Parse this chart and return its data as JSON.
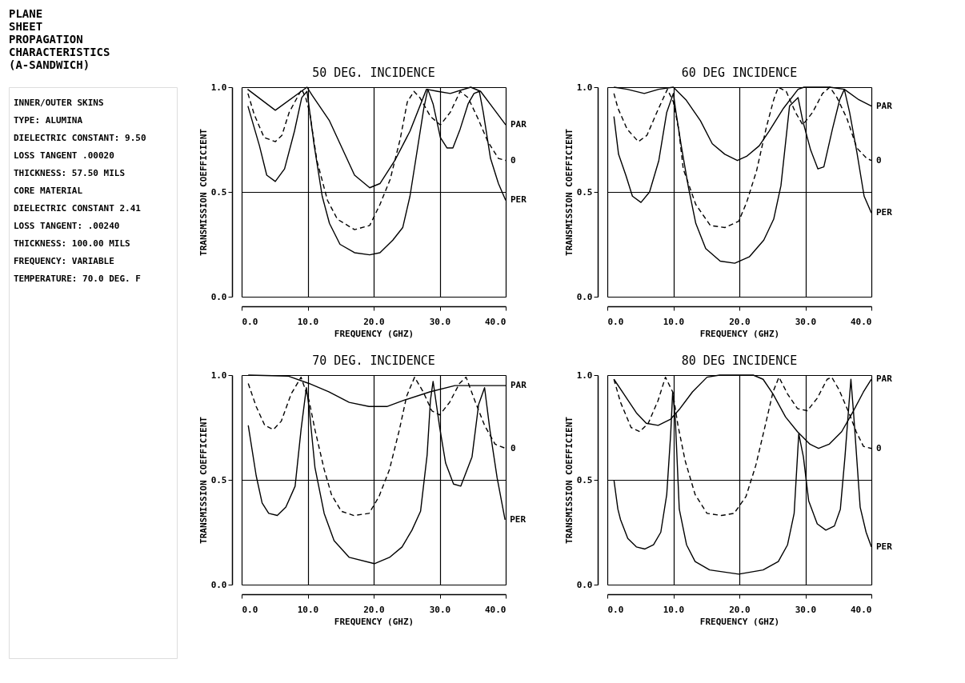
{
  "chart_data": [
    {
      "type": "other",
      "title": "PLANE SHEET PROPAGATION CHARACTERISTICS (A-SANDWICH)",
      "annotations": [
        "INNER/OUTER SKINS",
        "TYPE: ALUMINA",
        "DIELECTRIC CONSTANT: 9.50",
        "LOSS TANGENT .00020",
        "THICKNESS: 57.50 MILS",
        "CORE MATERIAL",
        "DIELECTRIC CONSTANT 2.41",
        "LOSS TANGENT: .00240",
        "THICKNESS: 100.00 MILS",
        "FREQUENCY: VARIABLE",
        "TEMPERATURE: 70.0 DEG. F"
      ]
    },
    {
      "type": "line",
      "title": "50 DEG. INCIDENCE",
      "xlabel": "FREQUENCY (GHZ)",
      "ylabel": "TRANSMISSION COEFFICIENT",
      "xlim": [
        0,
        40
      ],
      "ylim": [
        0,
        1
      ],
      "xticks": [
        {
          "value": 0,
          "label": "0.0"
        },
        {
          "value": 10,
          "label": "10.0"
        },
        {
          "value": 20,
          "label": "20.0"
        },
        {
          "value": 30,
          "label": "30.0"
        },
        {
          "value": 40,
          "label": "40.0"
        }
      ],
      "yticks": [
        {
          "value": 0,
          "label": "0.0"
        },
        {
          "value": 0.5,
          "label": "0.5"
        },
        {
          "value": 1,
          "label": "1.0"
        }
      ],
      "grid": true,
      "series": [
        {
          "name": "PAR",
          "color": "#000000",
          "line_style": "solid",
          "x": [
            0.9,
            5.1,
            9.9,
            10.7,
            13.3,
            15.2,
            17.1,
            19.4,
            20.95,
            23.2,
            25.5,
            28,
            29.7,
            31.6,
            34.7,
            36.2,
            38.1,
            40
          ],
          "values": [
            0.99,
            0.89,
            1.0,
            0.96,
            0.84,
            0.71,
            0.58,
            0.52,
            0.54,
            0.65,
            0.79,
            0.99,
            0.98,
            0.97,
            1.0,
            0.98,
            0.9,
            0.82
          ]
        },
        {
          "name": "0",
          "color": "#000000",
          "line_style": "dashed",
          "x": [
            0.95,
            1.9,
            3.4,
            5.1,
            6.1,
            7.2,
            9.1,
            9.7,
            10.3,
            11.4,
            13,
            14.5,
            17.1,
            19.4,
            20.95,
            22.5,
            24,
            25.1,
            26.1,
            27,
            28.6,
            30.1,
            31.6,
            33.1,
            34.3,
            35.8,
            37.3,
            38.9,
            40
          ],
          "values": [
            0.97,
            0.87,
            0.76,
            0.74,
            0.77,
            0.88,
            0.99,
            0.95,
            0.88,
            0.65,
            0.46,
            0.37,
            0.32,
            0.34,
            0.44,
            0.56,
            0.75,
            0.93,
            0.98,
            0.95,
            0.86,
            0.82,
            0.88,
            0.98,
            0.95,
            0.85,
            0.74,
            0.66,
            0.65
          ]
        },
        {
          "name": "PER",
          "color": "#000000",
          "line_style": "solid",
          "x": [
            0.95,
            2.7,
            3.8,
            5.1,
            6.5,
            8,
            9.1,
            9.9,
            11,
            12.2,
            13.3,
            14.9,
            17.1,
            19.4,
            20.95,
            22.9,
            24.4,
            25.5,
            26.7,
            27.6,
            28.2,
            29,
            30.1,
            31.1,
            32,
            33.1,
            34.3,
            35.2,
            36,
            36.6,
            37.7,
            38.9,
            40
          ],
          "values": [
            0.91,
            0.72,
            0.58,
            0.55,
            0.61,
            0.79,
            0.95,
            0.98,
            0.72,
            0.48,
            0.35,
            0.25,
            0.21,
            0.2,
            0.21,
            0.27,
            0.33,
            0.48,
            0.72,
            0.9,
            0.99,
            0.92,
            0.76,
            0.71,
            0.71,
            0.8,
            0.92,
            0.97,
            0.98,
            0.88,
            0.66,
            0.54,
            0.46
          ]
        }
      ]
    },
    {
      "type": "line",
      "title": "60 DEG INCIDENCE",
      "xlabel": "FREQUENCY (GHZ)",
      "ylabel": "TRANSMISSION COEFFICIENT",
      "xlim": [
        0,
        40
      ],
      "ylim": [
        0,
        1
      ],
      "xticks": [
        {
          "value": 0,
          "label": "0.0"
        },
        {
          "value": 10,
          "label": "10.0"
        },
        {
          "value": 20,
          "label": "20.0"
        },
        {
          "value": 30,
          "label": "30.0"
        },
        {
          "value": 40,
          "label": "40.0"
        }
      ],
      "yticks": [
        {
          "value": 0,
          "label": "0.0"
        },
        {
          "value": 0.5,
          "label": "0.5"
        },
        {
          "value": 1,
          "label": "1.0"
        }
      ],
      "grid": true,
      "series": [
        {
          "name": "PAR",
          "color": "#000000",
          "line_style": "solid",
          "x": [
            1,
            3,
            5.6,
            7.8,
            10,
            11.9,
            14.1,
            15.9,
            17.8,
            19.7,
            21.1,
            23,
            24.5,
            26.7,
            28.9,
            29.8,
            33.7,
            35.9,
            38.1,
            40
          ],
          "values": [
            1.0,
            0.99,
            0.97,
            0.99,
            1.0,
            0.94,
            0.84,
            0.73,
            0.68,
            0.65,
            0.67,
            0.72,
            0.79,
            0.9,
            0.99,
            1.0,
            1.0,
            0.99,
            0.94,
            0.91
          ]
        },
        {
          "name": "0",
          "color": "#000000",
          "line_style": "dashed",
          "x": [
            1,
            1.6,
            3,
            4.7,
            6,
            7.5,
            9.1,
            10,
            10.8,
            11.5,
            13.4,
            15.6,
            17.8,
            19.9,
            21.1,
            22.6,
            24.1,
            25.2,
            25.9,
            27.1,
            28.5,
            29.6,
            31.1,
            32.6,
            33.7,
            34.8,
            36.3,
            37.8,
            39.3,
            40
          ],
          "values": [
            0.97,
            0.9,
            0.8,
            0.74,
            0.77,
            0.88,
            0.99,
            0.93,
            0.8,
            0.61,
            0.44,
            0.34,
            0.33,
            0.36,
            0.45,
            0.6,
            0.81,
            0.94,
            1.0,
            0.98,
            0.88,
            0.82,
            0.88,
            0.97,
            1.0,
            0.95,
            0.85,
            0.71,
            0.66,
            0.65
          ]
        },
        {
          "name": "PER",
          "color": "#000000",
          "line_style": "solid",
          "x": [
            1,
            1.7,
            2.8,
            3.8,
            5.1,
            6.4,
            7.8,
            9,
            10,
            10.4,
            11.2,
            12.3,
            13.4,
            14.9,
            17.1,
            19.3,
            21.5,
            23.7,
            25.2,
            26.3,
            27.6,
            28.9,
            29.6,
            30.8,
            31.9,
            32.8,
            34.1,
            35.2,
            35.9,
            36.7,
            37.8,
            38.9,
            40
          ],
          "values": [
            0.86,
            0.68,
            0.58,
            0.48,
            0.45,
            0.5,
            0.65,
            0.88,
            0.97,
            0.88,
            0.72,
            0.52,
            0.35,
            0.23,
            0.17,
            0.16,
            0.19,
            0.27,
            0.37,
            0.53,
            0.91,
            0.95,
            0.84,
            0.7,
            0.61,
            0.62,
            0.8,
            0.94,
            0.99,
            0.88,
            0.69,
            0.48,
            0.4
          ]
        }
      ]
    },
    {
      "type": "line",
      "title": "70 DEG. INCIDENCE",
      "xlabel": "FREQUENCY (GHZ)",
      "ylabel": "TRANSMISSION COEFFICIENT",
      "xlim": [
        0,
        40
      ],
      "ylim": [
        0,
        1
      ],
      "xticks": [
        {
          "value": 0,
          "label": "0.0"
        },
        {
          "value": 10,
          "label": "10.0"
        },
        {
          "value": 20,
          "label": "20.0"
        },
        {
          "value": 30,
          "label": "30.0"
        },
        {
          "value": 40,
          "label": "40.0"
        }
      ],
      "yticks": [
        {
          "value": 0,
          "label": "0.0"
        },
        {
          "value": 0.5,
          "label": "0.5"
        },
        {
          "value": 1,
          "label": "1.0"
        }
      ],
      "grid": true,
      "series": [
        {
          "name": "PAR",
          "color": "#000000",
          "line_style": "solid",
          "x": [
            1,
            7.1,
            10.2,
            13.2,
            16.3,
            19.3,
            22,
            24.6,
            28.5,
            32.3,
            34.9,
            40
          ],
          "values": [
            1.0,
            0.995,
            0.96,
            0.92,
            0.87,
            0.85,
            0.85,
            0.88,
            0.92,
            0.95,
            0.95,
            0.95
          ]
        },
        {
          "name": "0",
          "color": "#000000",
          "line_style": "dashed",
          "x": [
            1,
            2.2,
            3.5,
            4.8,
            6,
            7.5,
            9,
            10.2,
            11.1,
            12.5,
            13.6,
            15.1,
            17,
            19.3,
            20.8,
            22.4,
            23.9,
            25,
            26.2,
            27.5,
            28.8,
            30,
            31.5,
            33,
            34,
            35.3,
            36.8,
            38.4,
            40
          ],
          "values": [
            0.96,
            0.85,
            0.76,
            0.74,
            0.78,
            0.91,
            0.99,
            0.88,
            0.74,
            0.55,
            0.43,
            0.35,
            0.33,
            0.34,
            0.42,
            0.55,
            0.74,
            0.9,
            0.99,
            0.92,
            0.83,
            0.81,
            0.87,
            0.96,
            0.99,
            0.88,
            0.76,
            0.67,
            0.65
          ]
        },
        {
          "name": "PER",
          "color": "#000000",
          "line_style": "solid",
          "x": [
            1,
            1.6,
            2.2,
            3.1,
            4.1,
            5.4,
            6.7,
            8.1,
            9,
            9.8,
            10.2,
            11.1,
            12.5,
            14,
            16.3,
            20.1,
            22.4,
            24.3,
            25.8,
            27.1,
            28.1,
            28.6,
            29,
            30,
            30.9,
            32.1,
            33.2,
            34.9,
            35.9,
            36.8,
            37.6,
            38.7,
            39.9
          ],
          "values": [
            0.76,
            0.64,
            0.52,
            0.39,
            0.34,
            0.33,
            0.37,
            0.47,
            0.74,
            0.94,
            0.85,
            0.56,
            0.34,
            0.21,
            0.13,
            0.1,
            0.13,
            0.18,
            0.26,
            0.35,
            0.62,
            0.88,
            0.97,
            0.75,
            0.58,
            0.48,
            0.47,
            0.61,
            0.86,
            0.94,
            0.74,
            0.51,
            0.31
          ]
        }
      ]
    },
    {
      "type": "line",
      "title": "80 DEG INCIDENCE",
      "xlabel": "FREQUENCY (GHZ)",
      "ylabel": "TRANSMISSION COEFFICIENT",
      "xlim": [
        0,
        40
      ],
      "ylim": [
        0,
        1
      ],
      "xticks": [
        {
          "value": 0,
          "label": "0.0"
        },
        {
          "value": 10,
          "label": "10.0"
        },
        {
          "value": 20,
          "label": "20.0"
        },
        {
          "value": 30,
          "label": "30.0"
        },
        {
          "value": 40,
          "label": "40.0"
        }
      ],
      "yticks": [
        {
          "value": 0,
          "label": "0.0"
        },
        {
          "value": 0.5,
          "label": "0.5"
        },
        {
          "value": 1,
          "label": "1.0"
        }
      ],
      "grid": true,
      "series": [
        {
          "name": "PAR",
          "color": "#000000",
          "line_style": "solid",
          "x": [
            1,
            2.5,
            4.4,
            5.9,
            7.7,
            9.6,
            11,
            12.9,
            15.1,
            17,
            22.1,
            23.6,
            25.1,
            27,
            28.8,
            30.7,
            32,
            33.6,
            35.5,
            37.3,
            38.8,
            40
          ],
          "values": [
            0.98,
            0.91,
            0.82,
            0.77,
            0.76,
            0.79,
            0.84,
            0.92,
            0.99,
            1.0,
            1.0,
            0.98,
            0.91,
            0.8,
            0.73,
            0.67,
            0.65,
            0.67,
            0.73,
            0.83,
            0.92,
            0.98
          ]
        },
        {
          "name": "0",
          "color": "#000000",
          "line_style": "dashed",
          "x": [
            1,
            2,
            3.6,
            4.9,
            6.2,
            7.7,
            8.8,
            9.9,
            10.7,
            11.8,
            13.3,
            15.1,
            17.3,
            19.2,
            21,
            22.5,
            24,
            25.1,
            26,
            27.3,
            28.8,
            30.3,
            31.8,
            33.3,
            34,
            35.1,
            36.6,
            37.7,
            38.8,
            40
          ],
          "values": [
            0.98,
            0.87,
            0.75,
            0.73,
            0.77,
            0.88,
            0.99,
            0.92,
            0.76,
            0.59,
            0.43,
            0.34,
            0.33,
            0.34,
            0.42,
            0.57,
            0.77,
            0.92,
            0.99,
            0.91,
            0.84,
            0.83,
            0.89,
            0.98,
            0.99,
            0.93,
            0.82,
            0.73,
            0.66,
            0.65
          ]
        },
        {
          "name": "PER",
          "color": "#000000",
          "line_style": "solid",
          "x": [
            1,
            1.6,
            2,
            3.1,
            4.4,
            5.7,
            7,
            8.1,
            9,
            9.6,
            9.9,
            10.3,
            10.9,
            12,
            13.3,
            15.5,
            19.9,
            23.6,
            25.9,
            27.3,
            28.3,
            29,
            29.7,
            30.5,
            31.8,
            33.1,
            34.4,
            35.3,
            36,
            36.6,
            36.9,
            37.3,
            38.3,
            39.2,
            40
          ],
          "values": [
            0.5,
            0.36,
            0.31,
            0.22,
            0.18,
            0.17,
            0.19,
            0.25,
            0.43,
            0.72,
            0.92,
            0.79,
            0.36,
            0.19,
            0.11,
            0.07,
            0.05,
            0.07,
            0.11,
            0.19,
            0.34,
            0.72,
            0.61,
            0.4,
            0.29,
            0.26,
            0.28,
            0.36,
            0.61,
            0.86,
            0.98,
            0.82,
            0.37,
            0.25,
            0.18
          ]
        }
      ]
    }
  ]
}
